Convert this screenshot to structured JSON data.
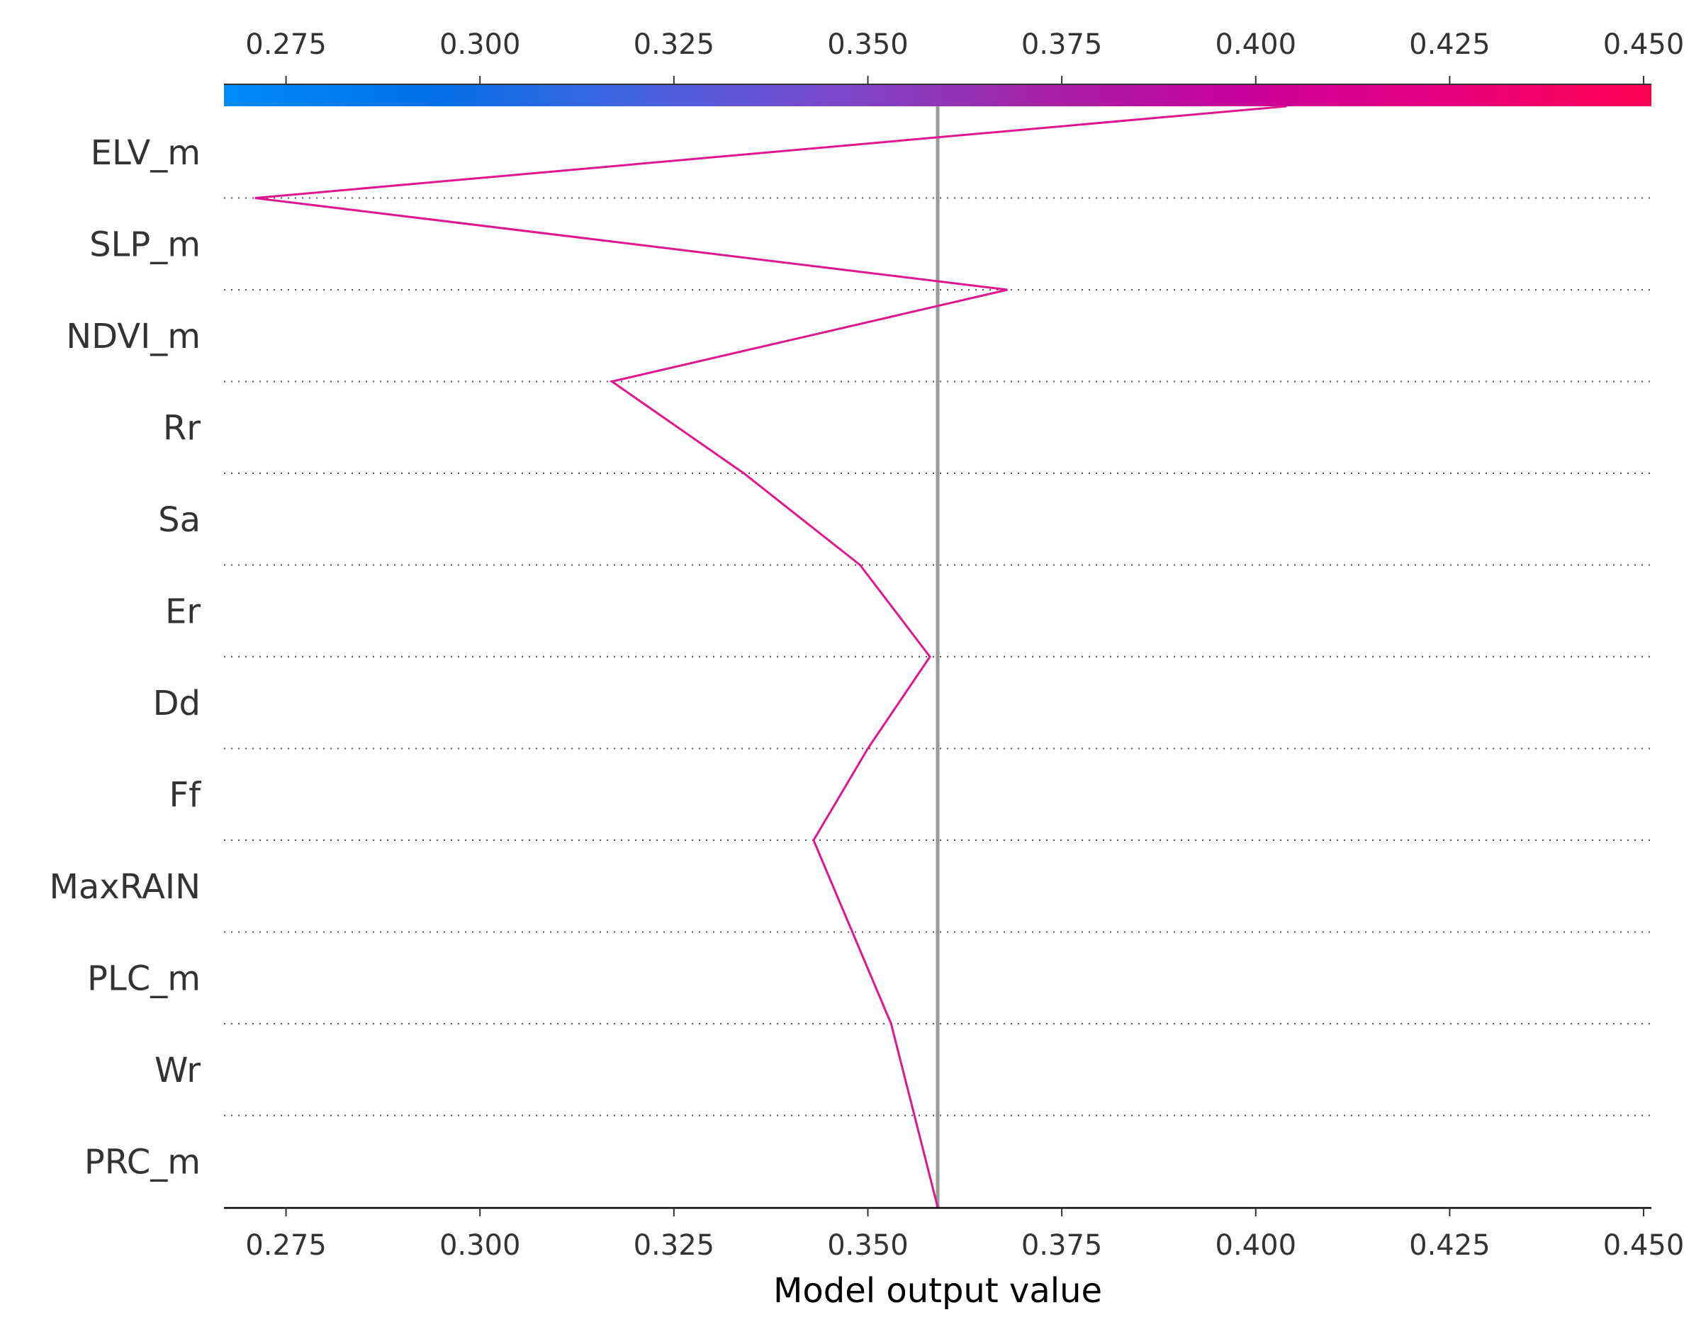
{
  "chart_data": {
    "type": "line",
    "subtype": "shap-decision-plot",
    "xlabel": "Model output value",
    "xlim": [
      0.267,
      0.451
    ],
    "x_ticks": [
      0.275,
      0.3,
      0.325,
      0.35,
      0.375,
      0.4,
      0.425,
      0.45
    ],
    "x_tick_labels": [
      "0.275",
      "0.300",
      "0.325",
      "0.350",
      "0.375",
      "0.400",
      "0.425",
      "0.450"
    ],
    "base_value": 0.359,
    "features": [
      "ELV_m",
      "SLP_m",
      "NDVI_m",
      "Rr",
      "Sa",
      "Er",
      "Dd",
      "Ff",
      "MaxRAIN",
      "PLC_m",
      "Wr",
      "PRC_m"
    ],
    "path_values": [
      0.404,
      0.271,
      0.368,
      0.317,
      0.334,
      0.349,
      0.358,
      0.35,
      0.343,
      0.348,
      0.353,
      0.356,
      0.359
    ],
    "line_color": "#e0168f",
    "base_line_color": "#999999",
    "colorbar": {
      "position": "top",
      "colors": [
        "#008bfb",
        "#0070e8",
        "#4464e2",
        "#7b48cc",
        "#a522a6",
        "#c8009c",
        "#e8007e",
        "#ff0051"
      ]
    },
    "grid": "dotted horizontal"
  }
}
